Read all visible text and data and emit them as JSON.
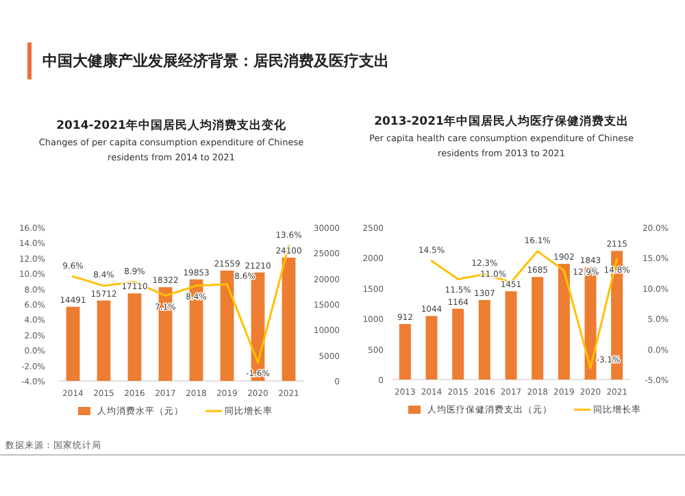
{
  "chart_data": [
    {
      "type": "bar",
      "title": "2014-2021年中国居民人均消费支出变化",
      "subtitle": "Changes of per capita consumption expenditure of Chinese residents from 2014 to 2021",
      "categories": [
        "2014",
        "2015",
        "2016",
        "2017",
        "2018",
        "2019",
        "2020",
        "2021"
      ],
      "series": [
        {
          "name": "人均消费水平（元）",
          "axis": "y2",
          "color": "#ed7d31",
          "values": [
            14491,
            15712,
            17110,
            18322,
            19853,
            21559,
            21210,
            24100
          ],
          "value_labels": [
            "14491",
            "15712",
            "17110",
            "18322",
            "19853",
            "21559",
            "21210",
            "24100"
          ]
        },
        {
          "name": "同比增长率",
          "type": "line",
          "color": "#ffc000",
          "values": [
            9.6,
            8.4,
            8.9,
            7.1,
            8.4,
            8.6,
            -1.6,
            13.6
          ],
          "value_labels": [
            "9.6%",
            "8.4%",
            "8.9%",
            "7.1%",
            "8.4%",
            "8.6%",
            "-1.6%",
            "13.6%"
          ]
        }
      ],
      "ylim": [
        -4,
        16
      ],
      "yticks": [
        {
          "value": -4,
          "label": "-4.0%"
        },
        {
          "value": -2,
          "label": "-2.0%"
        },
        {
          "value": 0,
          "label": "0.0%"
        },
        {
          "value": 2,
          "label": "2.0%"
        },
        {
          "value": 4,
          "label": "4.0%"
        },
        {
          "value": 6,
          "label": "6.0%"
        },
        {
          "value": 8,
          "label": "8.0%"
        },
        {
          "value": 10,
          "label": "10.0%"
        },
        {
          "value": 12,
          "label": "12.0%"
        },
        {
          "value": 14,
          "label": "14.0%"
        },
        {
          "value": 16,
          "label": "16.0%"
        }
      ],
      "y2lim": [
        0,
        30000
      ],
      "y2ticks": [
        0,
        5000,
        10000,
        15000,
        20000,
        25000,
        30000
      ],
      "legend": "bottom",
      "marker": "none",
      "annotations": [
        "中国大健康产业发展经济背景：居民消费及医疗支出",
        "数据来源：国家统计局"
      ]
    },
    {
      "type": "bar",
      "title": "2013-2021年中国居民人均医疗保健消费支出",
      "subtitle": "Per capita health care consumption expenditure of Chinese residents from 2013 to 2021",
      "categories": [
        "2013",
        "2014",
        "2015",
        "2016",
        "2017",
        "2018",
        "2019",
        "2020",
        "2021"
      ],
      "series": [
        {
          "name": "人均医疗保健消费支出（元）",
          "color": "#ed7d31",
          "values": [
            912,
            1044,
            1164,
            1307,
            1451,
            1685,
            1902,
            1843,
            2115
          ],
          "value_labels": [
            "912",
            "1044",
            "1164",
            "1307",
            "1451",
            "1685",
            "1902",
            "1843",
            "2115"
          ]
        },
        {
          "name": "同比增长率",
          "type": "line",
          "axis": "y2",
          "color": "#ffc000",
          "values": [
            null,
            14.5,
            11.5,
            12.3,
            11.0,
            16.1,
            12.9,
            -3.1,
            14.8
          ],
          "value_labels": [
            null,
            "14.5%",
            "11.5%",
            "12.3%",
            "11.0%",
            "16.1%",
            "12.9%",
            "-3.1%",
            "14.8%"
          ]
        }
      ],
      "ylim": [
        0,
        2500
      ],
      "yticks": [
        0,
        500,
        1000,
        1500,
        2000,
        2500
      ],
      "y2lim": [
        -5,
        20
      ],
      "y2ticks": [
        {
          "value": -5,
          "label": "-5.0%"
        },
        {
          "value": 0,
          "label": "0.0%"
        },
        {
          "value": 5,
          "label": "5.0%"
        },
        {
          "value": 10,
          "label": "10.0%"
        },
        {
          "value": 15,
          "label": "15.0%"
        },
        {
          "value": 20,
          "label": "20.0%"
        }
      ],
      "legend": "bottom",
      "marker": "none"
    }
  ]
}
